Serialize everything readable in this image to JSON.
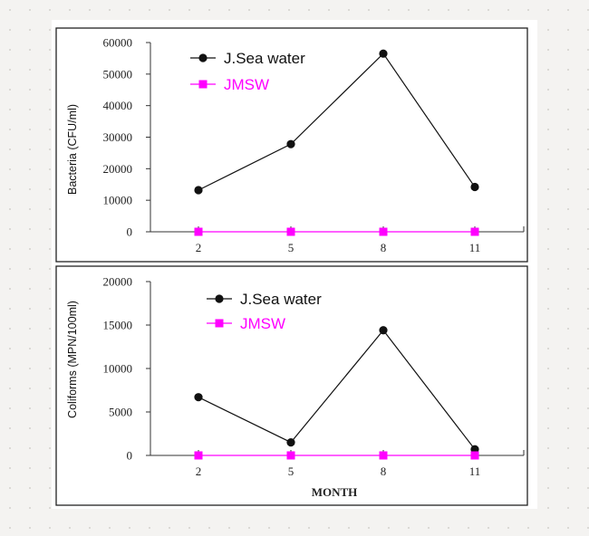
{
  "chart_data": [
    {
      "type": "line",
      "title": "",
      "xlabel": "",
      "ylabel": "Bacteria (CFU/ml)",
      "categories": [
        "2",
        "5",
        "8",
        "11"
      ],
      "yticks": [
        "0",
        "10000",
        "20000",
        "30000",
        "40000",
        "50000",
        "60000"
      ],
      "ylim": [
        0,
        60000
      ],
      "legend_position": "top-left",
      "series": [
        {
          "name": "J.Sea water",
          "values": [
            13200,
            27800,
            56500,
            14200
          ],
          "color": "#111111",
          "marker": "circle"
        },
        {
          "name": "JMSW",
          "values": [
            0,
            0,
            0,
            0
          ],
          "color": "#ff00ff",
          "marker": "square"
        }
      ]
    },
    {
      "type": "line",
      "title": "",
      "xlabel": "MONTH",
      "ylabel": "Coliforms (MPN/100ml)",
      "categories": [
        "2",
        "5",
        "8",
        "11"
      ],
      "yticks": [
        "0",
        "5000",
        "10000",
        "15000",
        "20000"
      ],
      "ylim": [
        0,
        20000
      ],
      "legend_position": "top-left",
      "series": [
        {
          "name": "J.Sea water",
          "values": [
            6700,
            1500,
            14400,
            700
          ],
          "color": "#111111",
          "marker": "circle"
        },
        {
          "name": "JMSW",
          "values": [
            0,
            0,
            0,
            0
          ],
          "color": "#ff00ff",
          "marker": "square"
        }
      ]
    }
  ]
}
